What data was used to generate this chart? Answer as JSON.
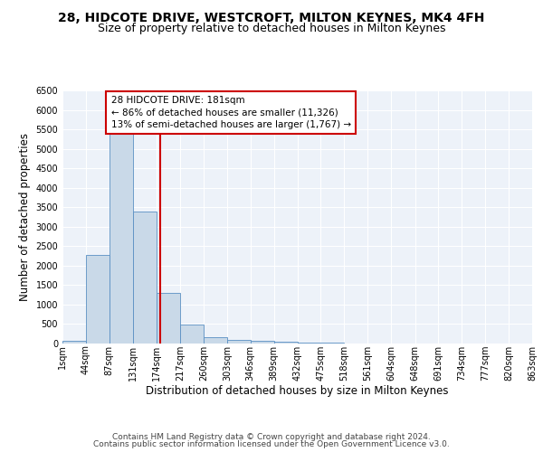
{
  "title": "28, HIDCOTE DRIVE, WESTCROFT, MILTON KEYNES, MK4 4FH",
  "subtitle": "Size of property relative to detached houses in Milton Keynes",
  "xlabel": "Distribution of detached houses by size in Milton Keynes",
  "ylabel": "Number of detached properties",
  "bin_edges": [
    1,
    44,
    87,
    131,
    174,
    217,
    260,
    303,
    346,
    389,
    432,
    475,
    518,
    561,
    604,
    648,
    691,
    734,
    777,
    820,
    863
  ],
  "bar_heights": [
    70,
    2280,
    5420,
    3380,
    1310,
    480,
    160,
    90,
    70,
    50,
    30,
    20,
    10,
    5,
    3,
    2,
    1,
    1,
    1,
    0
  ],
  "bar_color": "#c9d9e8",
  "bar_edge_color": "#5a8fc3",
  "property_size": 181,
  "vline_color": "#cc0000",
  "annotation_line1": "28 HIDCOTE DRIVE: 181sqm",
  "annotation_line2": "← 86% of detached houses are smaller (11,326)",
  "annotation_line3": "13% of semi-detached houses are larger (1,767) →",
  "annotation_box_color": "#ffffff",
  "annotation_box_edge": "#cc0000",
  "ylim": [
    0,
    6500
  ],
  "yticks": [
    0,
    500,
    1000,
    1500,
    2000,
    2500,
    3000,
    3500,
    4000,
    4500,
    5000,
    5500,
    6000,
    6500
  ],
  "tick_labels": [
    "1sqm",
    "44sqm",
    "87sqm",
    "131sqm",
    "174sqm",
    "217sqm",
    "260sqm",
    "303sqm",
    "346sqm",
    "389sqm",
    "432sqm",
    "475sqm",
    "518sqm",
    "561sqm",
    "604sqm",
    "648sqm",
    "691sqm",
    "734sqm",
    "777sqm",
    "820sqm",
    "863sqm"
  ],
  "footer_line1": "Contains HM Land Registry data © Crown copyright and database right 2024.",
  "footer_line2": "Contains public sector information licensed under the Open Government Licence v3.0.",
  "background_color": "#edf2f9",
  "grid_color": "#ffffff",
  "title_fontsize": 10,
  "subtitle_fontsize": 9,
  "axis_label_fontsize": 8.5,
  "tick_fontsize": 7,
  "footer_fontsize": 6.5,
  "annot_fontsize": 7.5
}
